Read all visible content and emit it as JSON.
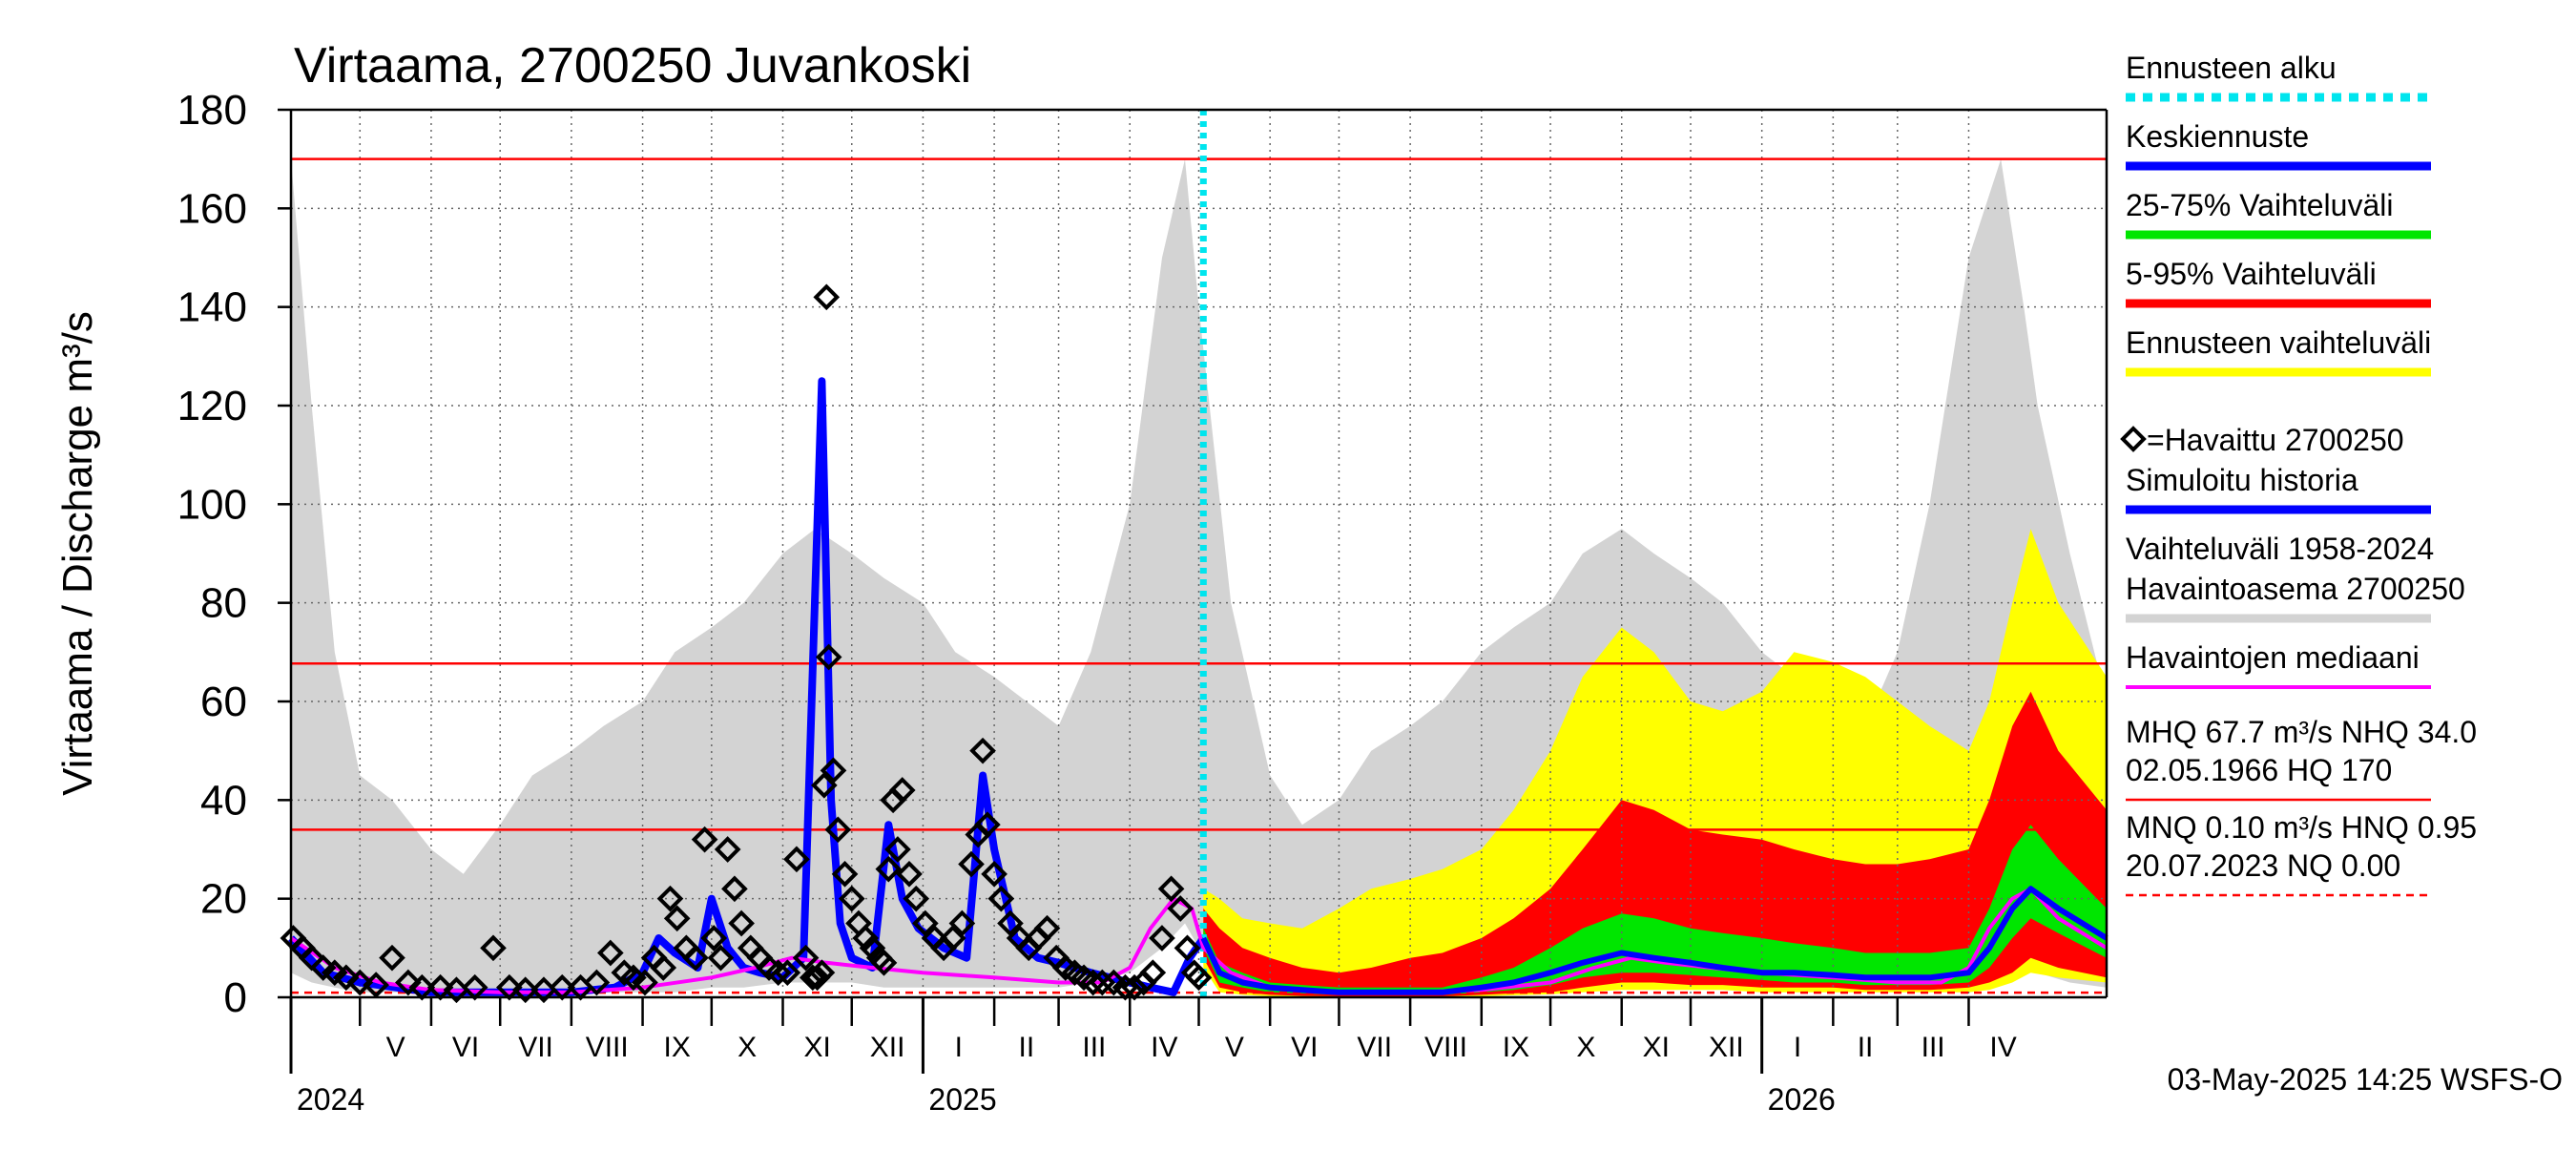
{
  "title": "Virtaama, 2700250 Juvankoski",
  "ylabel": "Virtaama / Discharge    m³/s",
  "footer": "03-May-2025 14:25 WSFS-O",
  "colors": {
    "history_band": "#d3d3d3",
    "forecast_range": "#ffff00",
    "p5_95": "#ff0000",
    "p25_75": "#00e600",
    "mean_forecast": "#0000ff",
    "simulated": "#0000ff",
    "median": "#ff00ff",
    "forecast_start": "#00e5ee",
    "reference": "#ff0000",
    "observed": "#000000"
  },
  "legend": [
    {
      "label": "Ennusteen alku",
      "style": "dotted",
      "color": "#00e5ee"
    },
    {
      "label": "Keskiennuste",
      "style": "thick",
      "color": "#0000ff"
    },
    {
      "label": "25-75% Vaihteluväli",
      "style": "thick",
      "color": "#00e600"
    },
    {
      "label": "5-95% Vaihteluväli",
      "style": "thick",
      "color": "#ff0000"
    },
    {
      "label": "Ennusteen vaihteluväli",
      "style": "thick",
      "color": "#ffff00"
    },
    {
      "label": "=Havaittu 2700250",
      "style": "marker",
      "color": "#000000"
    },
    {
      "label": "Simuloitu historia",
      "style": "thick",
      "color": "#0000ff"
    },
    {
      "label": "Vaihteluväli 1958-2024",
      "style": "none",
      "color": ""
    },
    {
      "label": " Havaintoasema 2700250",
      "style": "thick",
      "color": "#d3d3d3"
    },
    {
      "label": "Havaintojen mediaani",
      "style": "thin",
      "color": "#ff00ff"
    }
  ],
  "stats": [
    {
      "line1": "MHQ 67.7 m³/s NHQ 34.0",
      "line2": "02.05.1966 HQ  170",
      "style": "solid"
    },
    {
      "line1": "MNQ 0.10 m³/s HNQ 0.95",
      "line2": "20.07.2023 NQ 0.00",
      "style": "dashed"
    }
  ],
  "chart_data": {
    "type": "line",
    "title": "Virtaama, 2700250 Juvankoski",
    "ylabel": "Virtaama / Discharge    m³/s",
    "ylim": [
      0,
      180
    ],
    "yticks": [
      0,
      20,
      40,
      60,
      80,
      100,
      120,
      140,
      160,
      180
    ],
    "x_axis": {
      "type": "date",
      "start": "2024-04-01",
      "end": "2026-05-31",
      "grid": true,
      "month_labels": [
        "V",
        "VI",
        "VII",
        "VIII",
        "IX",
        "X",
        "XI",
        "XII",
        "I",
        "II",
        "III",
        "IV",
        "V",
        "VI",
        "VII",
        "VIII",
        "IX",
        "X",
        "XI",
        "XII",
        "I",
        "II",
        "III",
        "IV"
      ],
      "month_starts": [
        "2024-05-01",
        "2024-06-01",
        "2024-07-01",
        "2024-08-01",
        "2024-09-01",
        "2024-10-01",
        "2024-11-01",
        "2024-12-01",
        "2025-01-01",
        "2025-02-01",
        "2025-03-01",
        "2025-04-01",
        "2025-05-01",
        "2025-06-01",
        "2025-07-01",
        "2025-08-01",
        "2025-09-01",
        "2025-10-01",
        "2025-11-01",
        "2025-12-01",
        "2026-01-01",
        "2026-02-01",
        "2026-03-01",
        "2026-04-01"
      ],
      "years": [
        {
          "label": "2024",
          "date": "2024-04-01"
        },
        {
          "label": "2025",
          "date": "2025-01-01"
        },
        {
          "label": "2026",
          "date": "2026-01-01"
        }
      ]
    },
    "forecast_start": "2025-05-03",
    "reference_lines": [
      {
        "name": "HQ",
        "value": 170,
        "style": "solid"
      },
      {
        "name": "MHQ",
        "value": 67.7,
        "style": "solid"
      },
      {
        "name": "NHQ",
        "value": 34.0,
        "style": "solid"
      },
      {
        "name": "HNQ",
        "value": 0.95,
        "style": "dashed"
      }
    ],
    "history_range": {
      "dates": [
        "2024-04-01",
        "2024-04-10",
        "2024-04-20",
        "2024-05-01",
        "2024-05-15",
        "2024-06-01",
        "2024-06-15",
        "2024-07-01",
        "2024-07-15",
        "2024-08-01",
        "2024-08-15",
        "2024-09-01",
        "2024-09-15",
        "2024-10-01",
        "2024-10-15",
        "2024-11-01",
        "2024-11-15",
        "2024-12-01",
        "2024-12-15",
        "2025-01-01",
        "2025-01-15",
        "2025-02-01",
        "2025-02-15",
        "2025-03-01",
        "2025-03-15",
        "2025-04-01",
        "2025-04-15",
        "2025-04-25",
        "2025-05-01",
        "2025-05-15",
        "2025-06-01",
        "2025-06-15",
        "2025-07-01",
        "2025-07-15",
        "2025-08-01",
        "2025-08-15",
        "2025-09-01",
        "2025-09-15",
        "2025-10-01",
        "2025-10-15",
        "2025-11-01",
        "2025-11-15",
        "2025-12-01",
        "2025-12-15",
        "2026-01-01",
        "2026-01-15",
        "2026-02-01",
        "2026-02-15",
        "2026-03-01",
        "2026-03-15",
        "2026-04-01",
        "2026-04-15",
        "2026-04-25",
        "2026-05-01",
        "2026-05-15",
        "2026-05-31"
      ],
      "high": [
        170,
        120,
        70,
        45,
        40,
        30,
        25,
        35,
        45,
        50,
        55,
        60,
        70,
        75,
        80,
        90,
        95,
        90,
        85,
        80,
        70,
        65,
        60,
        55,
        70,
        100,
        150,
        170,
        140,
        80,
        45,
        35,
        40,
        50,
        55,
        60,
        70,
        75,
        80,
        90,
        95,
        90,
        85,
        80,
        70,
        65,
        60,
        55,
        70,
        100,
        150,
        170,
        140,
        120,
        90,
        60
      ],
      "low": [
        5,
        3,
        2,
        1,
        1,
        1,
        1,
        1,
        1,
        1,
        1,
        1,
        1,
        2,
        2,
        3,
        3,
        3,
        2,
        2,
        2,
        2,
        2,
        2,
        3,
        5,
        10,
        15,
        10,
        5,
        2,
        1,
        1,
        1,
        1,
        1,
        1,
        1,
        2,
        2,
        3,
        3,
        3,
        2,
        2,
        2,
        2,
        2,
        3,
        5,
        10,
        15,
        10,
        5,
        3,
        2
      ]
    },
    "median": {
      "dates": [
        "2024-04-01",
        "2024-04-20",
        "2024-05-10",
        "2024-06-01",
        "2024-07-01",
        "2024-08-01",
        "2024-09-01",
        "2024-10-01",
        "2024-10-20",
        "2024-11-05",
        "2024-11-20",
        "2024-12-10",
        "2025-01-01",
        "2025-02-01",
        "2025-03-01",
        "2025-03-20",
        "2025-04-01",
        "2025-04-10",
        "2025-04-20",
        "2025-04-28",
        "2025-05-03",
        "2025-05-15",
        "2025-06-01",
        "2025-07-01",
        "2025-08-01",
        "2025-09-01",
        "2025-10-01",
        "2025-10-20",
        "2025-11-05",
        "2025-11-20",
        "2025-12-10",
        "2026-01-01",
        "2026-02-01",
        "2026-03-01",
        "2026-03-20",
        "2026-04-01",
        "2026-04-10",
        "2026-04-20",
        "2026-04-28",
        "2026-05-10",
        "2026-05-31"
      ],
      "values": [
        12,
        6,
        3,
        1.5,
        1,
        1,
        2,
        4,
        6,
        8,
        7,
        6,
        5,
        4,
        3,
        3,
        6,
        14,
        20,
        18,
        10,
        5,
        2,
        1,
        1,
        1.5,
        3,
        6,
        8,
        7,
        6,
        5,
        4,
        3,
        3,
        6,
        14,
        20,
        22,
        16,
        10
      ]
    },
    "simulated": {
      "dates": [
        "2024-04-01",
        "2024-04-15",
        "2024-05-01",
        "2024-06-01",
        "2024-07-01",
        "2024-08-01",
        "2024-08-20",
        "2024-09-01",
        "2024-09-08",
        "2024-09-15",
        "2024-09-25",
        "2024-10-01",
        "2024-10-08",
        "2024-10-15",
        "2024-10-22",
        "2024-11-01",
        "2024-11-10",
        "2024-11-18",
        "2024-11-22",
        "2024-11-26",
        "2024-12-01",
        "2024-12-10",
        "2024-12-17",
        "2024-12-23",
        "2024-12-30",
        "2025-01-10",
        "2025-01-20",
        "2025-01-27",
        "2025-02-01",
        "2025-02-10",
        "2025-02-20",
        "2025-03-01",
        "2025-03-15",
        "2025-04-01",
        "2025-04-10",
        "2025-04-20",
        "2025-04-27",
        "2025-05-03"
      ],
      "values": [
        12,
        5,
        3,
        1,
        1,
        1,
        2,
        5,
        12,
        9,
        6,
        20,
        10,
        6,
        5,
        4,
        8,
        125,
        40,
        15,
        8,
        6,
        35,
        20,
        14,
        10,
        8,
        45,
        30,
        12,
        8,
        7,
        5,
        3,
        2,
        1,
        8,
        12
      ]
    },
    "observed": {
      "dates": [
        "2024-04-02",
        "2024-04-06",
        "2024-04-10",
        "2024-04-15",
        "2024-04-20",
        "2024-04-25",
        "2024-05-01",
        "2024-05-08",
        "2024-05-15",
        "2024-05-22",
        "2024-05-28",
        "2024-06-05",
        "2024-06-12",
        "2024-06-20",
        "2024-06-28",
        "2024-07-05",
        "2024-07-12",
        "2024-07-20",
        "2024-07-28",
        "2024-08-05",
        "2024-08-12",
        "2024-08-18",
        "2024-08-24",
        "2024-08-28",
        "2024-09-02",
        "2024-09-06",
        "2024-09-10",
        "2024-09-13",
        "2024-09-16",
        "2024-09-20",
        "2024-09-24",
        "2024-09-28",
        "2024-10-02",
        "2024-10-05",
        "2024-10-08",
        "2024-10-11",
        "2024-10-14",
        "2024-10-18",
        "2024-10-22",
        "2024-10-26",
        "2024-10-30",
        "2024-11-03",
        "2024-11-07",
        "2024-11-11",
        "2024-11-14",
        "2024-11-16",
        "2024-11-18",
        "2024-11-19",
        "2024-11-20",
        "2024-11-21",
        "2024-11-23",
        "2024-11-25",
        "2024-11-28",
        "2024-12-01",
        "2024-12-04",
        "2024-12-07",
        "2024-12-10",
        "2024-12-13",
        "2024-12-15",
        "2024-12-17",
        "2024-12-19",
        "2024-12-21",
        "2024-12-23",
        "2024-12-26",
        "2024-12-29",
        "2025-01-02",
        "2025-01-06",
        "2025-01-10",
        "2025-01-14",
        "2025-01-18",
        "2025-01-22",
        "2025-01-25",
        "2025-01-27",
        "2025-01-29",
        "2025-02-01",
        "2025-02-04",
        "2025-02-08",
        "2025-02-12",
        "2025-02-16",
        "2025-02-20",
        "2025-02-24",
        "2025-02-28",
        "2025-03-04",
        "2025-03-08",
        "2025-03-12",
        "2025-03-16",
        "2025-03-20",
        "2025-03-25",
        "2025-03-30",
        "2025-04-03",
        "2025-04-07",
        "2025-04-11",
        "2025-04-15",
        "2025-04-19",
        "2025-04-23",
        "2025-04-26",
        "2025-04-29",
        "2025-05-01"
      ],
      "values": [
        12,
        10,
        8,
        6,
        5,
        4,
        3,
        2.5,
        8,
        3,
        2,
        2,
        1.5,
        2,
        10,
        2,
        1.5,
        1.5,
        2,
        2,
        3,
        9,
        5,
        4,
        3,
        8,
        6,
        20,
        16,
        10,
        8,
        32,
        12,
        8,
        30,
        22,
        15,
        10,
        8,
        6,
        5,
        5,
        28,
        8,
        4,
        4,
        5,
        43,
        142,
        69,
        46,
        34,
        25,
        20,
        15,
        12,
        10,
        8,
        7,
        26,
        40,
        30,
        42,
        25,
        20,
        15,
        12,
        10,
        12,
        15,
        27,
        33,
        50,
        35,
        25,
        20,
        15,
        12,
        10,
        12,
        14,
        8,
        6,
        5,
        4,
        3,
        3,
        3,
        2,
        2,
        3,
        5,
        12,
        22,
        18,
        10,
        5,
        4
      ]
    },
    "forecast": {
      "dates": [
        "2025-05-03",
        "2025-05-10",
        "2025-05-20",
        "2025-06-01",
        "2025-06-15",
        "2025-07-01",
        "2025-07-15",
        "2025-08-01",
        "2025-08-15",
        "2025-09-01",
        "2025-09-15",
        "2025-10-01",
        "2025-10-15",
        "2025-11-01",
        "2025-11-15",
        "2025-12-01",
        "2025-12-15",
        "2026-01-01",
        "2026-01-15",
        "2026-02-01",
        "2026-02-15",
        "2026-03-01",
        "2026-03-15",
        "2026-04-01",
        "2026-04-10",
        "2026-04-20",
        "2026-04-28",
        "2026-05-10",
        "2026-05-31"
      ],
      "mean": [
        12,
        5,
        3,
        2,
        1.5,
        1,
        1,
        1,
        1,
        2,
        3,
        5,
        7,
        9,
        8,
        7,
        6,
        5,
        5,
        4.5,
        4,
        4,
        4,
        5,
        10,
        18,
        22,
        18,
        12
      ],
      "p25": [
        10,
        3,
        2,
        1,
        0.8,
        0.5,
        0.5,
        0.5,
        0.5,
        1,
        1.5,
        2.5,
        4,
        5,
        5,
        4.5,
        4,
        3.5,
        3,
        3,
        2.5,
        2.5,
        2.5,
        3,
        6,
        12,
        16,
        13,
        8
      ],
      "p75": [
        14,
        7,
        5,
        3,
        2.5,
        2,
        2,
        2,
        2,
        4,
        6,
        10,
        14,
        17,
        16,
        14,
        13,
        12,
        11,
        10,
        9,
        9,
        9,
        10,
        18,
        30,
        35,
        28,
        18
      ],
      "p5": [
        8,
        2,
        1,
        0.5,
        0.3,
        0.2,
        0.2,
        0.2,
        0.2,
        0.5,
        0.8,
        1,
        2,
        3,
        3,
        2.5,
        2.5,
        2,
        2,
        2,
        1.5,
        1.5,
        1.5,
        2,
        3,
        5,
        8,
        6,
        4
      ],
      "p95": [
        18,
        14,
        10,
        8,
        6,
        5,
        6,
        8,
        9,
        12,
        16,
        22,
        30,
        40,
        38,
        34,
        33,
        32,
        30,
        28,
        27,
        27,
        28,
        30,
        40,
        55,
        62,
        50,
        38
      ],
      "min": [
        6,
        1,
        0.5,
        0.2,
        0.1,
        0.1,
        0.1,
        0.1,
        0.1,
        0.2,
        0.4,
        0.6,
        1,
        1.5,
        1.5,
        1.5,
        1.5,
        1,
        1,
        1,
        1,
        1,
        1,
        1,
        1.5,
        3,
        5,
        4,
        3
      ],
      "max": [
        22,
        20,
        16,
        15,
        14,
        18,
        22,
        24,
        26,
        30,
        38,
        50,
        65,
        75,
        70,
        60,
        58,
        62,
        70,
        68,
        65,
        60,
        55,
        50,
        60,
        80,
        95,
        80,
        65
      ]
    }
  }
}
